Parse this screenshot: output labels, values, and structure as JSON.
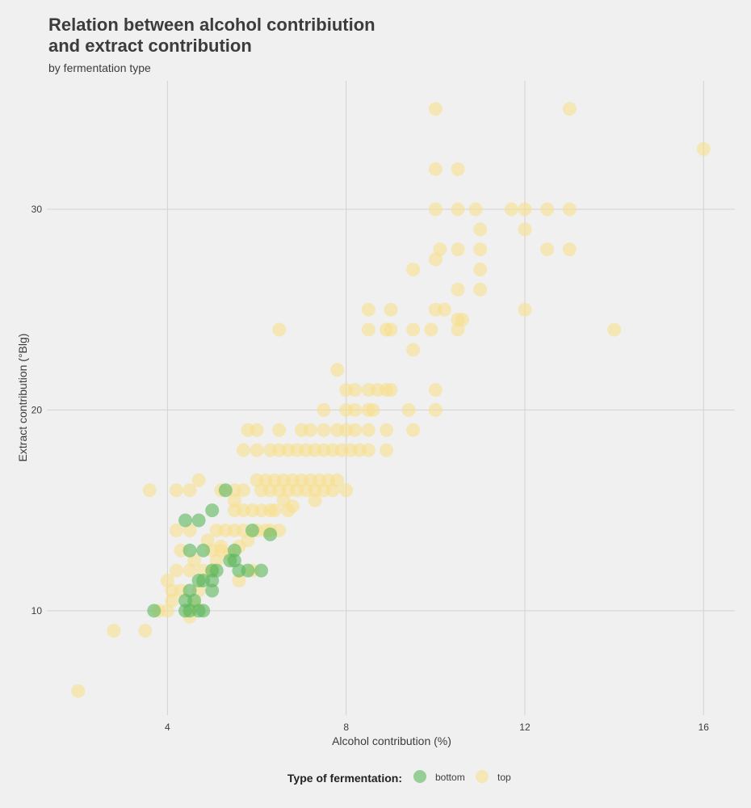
{
  "chart_data": {
    "type": "scatter",
    "title_line1": "Relation between alcohol contribiution",
    "title_line2": "and extract contribution",
    "subtitle": "by fermentation type",
    "xlabel": "Alcohol contribution (%)",
    "ylabel": "Extract contribution (°Blg)",
    "xlim": [
      1.3,
      16.7
    ],
    "ylim": [
      4.8,
      36.4
    ],
    "xticks": [
      4,
      8,
      12,
      16
    ],
    "yticks": [
      10,
      20,
      30
    ],
    "grid": true,
    "legend": {
      "title": "Type of fermentation:",
      "position": "bottom",
      "entries": [
        {
          "label": "bottom",
          "color": "#5cb85c"
        },
        {
          "label": "top",
          "color": "#f8e08e"
        }
      ]
    },
    "series": [
      {
        "name": "top",
        "color": "#f8e08e",
        "points": [
          [
            2,
            6
          ],
          [
            2.8,
            9
          ],
          [
            3.5,
            9
          ],
          [
            3.6,
            16
          ],
          [
            4.2,
            16
          ],
          [
            4.5,
            16
          ],
          [
            4.7,
            16.5
          ],
          [
            3.8,
            10
          ],
          [
            4,
            10
          ],
          [
            4.1,
            11
          ],
          [
            4,
            11.5
          ],
          [
            4.2,
            12
          ],
          [
            4.3,
            13
          ],
          [
            4.2,
            14
          ],
          [
            4.5,
            14
          ],
          [
            4.5,
            12
          ],
          [
            4.6,
            12.5
          ],
          [
            4.7,
            11
          ],
          [
            4.5,
            9.7
          ],
          [
            4.6,
            10.3
          ],
          [
            4.1,
            10.5
          ],
          [
            4.3,
            11
          ],
          [
            4.8,
            12
          ],
          [
            5,
            12
          ],
          [
            5.1,
            12.5
          ],
          [
            5,
            13
          ],
          [
            5.2,
            13
          ],
          [
            4.9,
            13.5
          ],
          [
            5.1,
            14
          ],
          [
            5.3,
            14
          ],
          [
            5.5,
            14
          ],
          [
            5.7,
            14
          ],
          [
            5.2,
            13.2
          ],
          [
            5.4,
            12.8
          ],
          [
            5.6,
            13.2
          ],
          [
            5.8,
            13.5
          ],
          [
            6,
            14
          ],
          [
            6.2,
            14
          ],
          [
            6.3,
            14
          ],
          [
            6.5,
            14
          ],
          [
            5.6,
            11.5
          ],
          [
            5.9,
            12
          ],
          [
            5.5,
            15
          ],
          [
            5.7,
            15
          ],
          [
            5.9,
            15
          ],
          [
            6.1,
            15
          ],
          [
            6.3,
            15
          ],
          [
            5.5,
            15.5
          ],
          [
            5.7,
            16
          ],
          [
            6.1,
            16
          ],
          [
            6.3,
            16
          ],
          [
            5.2,
            16
          ],
          [
            5.5,
            16
          ],
          [
            6,
            16.5
          ],
          [
            6.2,
            16.5
          ],
          [
            6.4,
            16.5
          ],
          [
            6.6,
            16.5
          ],
          [
            6.8,
            16.5
          ],
          [
            7,
            16.5
          ],
          [
            7.2,
            16.5
          ],
          [
            7.4,
            16.5
          ],
          [
            7.6,
            16.5
          ],
          [
            7.8,
            16.5
          ],
          [
            6.5,
            16
          ],
          [
            6.7,
            16
          ],
          [
            6.9,
            16
          ],
          [
            7.1,
            16
          ],
          [
            7.3,
            16
          ],
          [
            7.5,
            16
          ],
          [
            7.7,
            16
          ],
          [
            8,
            16
          ],
          [
            6.6,
            15.5
          ],
          [
            6.8,
            15.2
          ],
          [
            7.3,
            15.5
          ],
          [
            6.4,
            15
          ],
          [
            6.7,
            15
          ],
          [
            5.7,
            18
          ],
          [
            6,
            18
          ],
          [
            6.3,
            18
          ],
          [
            6.5,
            18
          ],
          [
            6.7,
            18
          ],
          [
            6.9,
            18
          ],
          [
            7.1,
            18
          ],
          [
            7.3,
            18
          ],
          [
            7.5,
            18
          ],
          [
            7.7,
            18
          ],
          [
            7.9,
            18
          ],
          [
            8.1,
            18
          ],
          [
            8.3,
            18
          ],
          [
            8.5,
            18
          ],
          [
            8.9,
            18
          ],
          [
            6,
            19
          ],
          [
            6.5,
            19
          ],
          [
            7,
            19
          ],
          [
            7.2,
            19
          ],
          [
            7.5,
            19
          ],
          [
            7.8,
            19
          ],
          [
            8,
            19
          ],
          [
            8.2,
            19
          ],
          [
            8.5,
            19
          ],
          [
            8.9,
            19
          ],
          [
            5.8,
            19
          ],
          [
            7.5,
            20
          ],
          [
            8,
            20
          ],
          [
            8.2,
            20
          ],
          [
            8.5,
            20
          ],
          [
            8.6,
            20
          ],
          [
            9.4,
            20
          ],
          [
            9.5,
            19
          ],
          [
            10,
            20
          ],
          [
            8,
            21
          ],
          [
            8.2,
            21
          ],
          [
            8.5,
            21
          ],
          [
            8.7,
            21
          ],
          [
            8.9,
            21
          ],
          [
            9,
            21
          ],
          [
            10,
            21
          ],
          [
            7.8,
            22
          ],
          [
            6.5,
            24
          ],
          [
            8.5,
            24
          ],
          [
            8.9,
            24
          ],
          [
            9,
            24
          ],
          [
            9.5,
            24
          ],
          [
            9.9,
            24
          ],
          [
            10.5,
            24
          ],
          [
            14,
            24
          ],
          [
            8.5,
            25
          ],
          [
            9,
            25
          ],
          [
            10,
            25
          ],
          [
            10.2,
            25
          ],
          [
            12,
            25
          ],
          [
            10.5,
            24.5
          ],
          [
            10.6,
            24.5
          ],
          [
            9.5,
            23
          ],
          [
            9.5,
            27
          ],
          [
            10.5,
            26
          ],
          [
            11,
            26
          ],
          [
            11,
            27
          ],
          [
            10,
            27.5
          ],
          [
            10.1,
            28
          ],
          [
            10.5,
            28
          ],
          [
            11,
            28
          ],
          [
            12.5,
            28
          ],
          [
            13,
            28
          ],
          [
            12,
            29
          ],
          [
            11,
            29
          ],
          [
            10,
            30
          ],
          [
            10.5,
            30
          ],
          [
            10.9,
            30
          ],
          [
            11.7,
            30
          ],
          [
            12,
            30
          ],
          [
            12.5,
            30
          ],
          [
            13,
            30
          ],
          [
            10,
            32
          ],
          [
            10.5,
            32
          ],
          [
            10,
            35
          ],
          [
            13,
            35
          ],
          [
            16,
            33
          ]
        ]
      },
      {
        "name": "bottom",
        "color": "#5cb85c",
        "points": [
          [
            3.7,
            10
          ],
          [
            4.4,
            10
          ],
          [
            4.5,
            10
          ],
          [
            4.7,
            10
          ],
          [
            4.8,
            10
          ],
          [
            4.4,
            10.5
          ],
          [
            4.6,
            10.5
          ],
          [
            4.5,
            11
          ],
          [
            5,
            11
          ],
          [
            4.7,
            11.5
          ],
          [
            4.8,
            11.5
          ],
          [
            5,
            11.5
          ],
          [
            5.1,
            12
          ],
          [
            5,
            12
          ],
          [
            5.4,
            12.5
          ],
          [
            5.5,
            12.5
          ],
          [
            5.6,
            12
          ],
          [
            5.8,
            12
          ],
          [
            6.1,
            12
          ],
          [
            4.5,
            13
          ],
          [
            4.8,
            13
          ],
          [
            5.5,
            13
          ],
          [
            5.9,
            14
          ],
          [
            6.3,
            13.8
          ],
          [
            4.4,
            14.5
          ],
          [
            4.7,
            14.5
          ],
          [
            5,
            15
          ],
          [
            5.3,
            16
          ]
        ]
      }
    ]
  }
}
